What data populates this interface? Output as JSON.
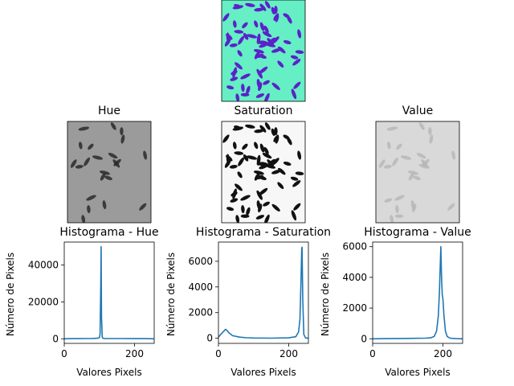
{
  "images": [
    {
      "id": "original",
      "title": ""
    },
    {
      "id": "hue",
      "title": "Hue"
    },
    {
      "id": "saturation",
      "title": "Saturation"
    },
    {
      "id": "value",
      "title": "Value"
    }
  ],
  "colors": {
    "line": "#1f77b4",
    "original_bg": "#66eec5",
    "original_grain": "#5a22c8",
    "hue_bg": "#9b9b9b",
    "saturation_bg": "#f7f7f7",
    "value_bg": "#d9d9d9"
  },
  "chart_data": [
    {
      "type": "line",
      "title": "Histograma - Hue",
      "xlabel": "Valores Pixels",
      "ylabel": "Número de Pixels",
      "xlim": [
        0,
        256
      ],
      "ylim": [
        -2500,
        52500
      ],
      "xticks": [
        0,
        200
      ],
      "yticks": [
        0,
        20000,
        40000
      ],
      "x": [
        0,
        20,
        40,
        60,
        80,
        95,
        100,
        102,
        104,
        105,
        106,
        108,
        110,
        115,
        130,
        160,
        200,
        230,
        255
      ],
      "values": [
        0,
        80,
        60,
        120,
        150,
        300,
        600,
        2500,
        30000,
        50000,
        12000,
        900,
        300,
        150,
        120,
        100,
        80,
        60,
        0
      ]
    },
    {
      "type": "line",
      "title": "Histograma - Saturation",
      "xlabel": "Valores Pixels",
      "ylabel": "Número de Pixels",
      "xlim": [
        0,
        256
      ],
      "ylim": [
        -400,
        7500
      ],
      "xticks": [
        0,
        200
      ],
      "yticks": [
        0,
        2000,
        4000,
        6000
      ],
      "x": [
        0,
        5,
        10,
        15,
        20,
        25,
        30,
        40,
        60,
        80,
        100,
        150,
        200,
        220,
        228,
        232,
        235,
        237,
        238,
        240,
        243,
        248,
        255
      ],
      "values": [
        80,
        250,
        400,
        550,
        700,
        600,
        420,
        200,
        90,
        40,
        20,
        10,
        30,
        120,
        500,
        1500,
        4500,
        7000,
        7100,
        3000,
        300,
        20,
        0
      ]
    },
    {
      "type": "line",
      "title": "Histograma - Value",
      "xlabel": "Valores Pixels",
      "ylabel": "Número de Pixels",
      "xlim": [
        0,
        256
      ],
      "ylim": [
        -300,
        6300
      ],
      "xticks": [
        0,
        200
      ],
      "yticks": [
        0,
        2000,
        4000,
        6000
      ],
      "x": [
        0,
        40,
        80,
        120,
        150,
        165,
        175,
        182,
        187,
        190,
        192,
        194,
        196,
        198,
        200,
        203,
        207,
        212,
        220,
        235,
        255
      ],
      "values": [
        0,
        10,
        20,
        30,
        40,
        60,
        150,
        500,
        1500,
        3000,
        4500,
        6000,
        4000,
        2900,
        2600,
        1500,
        500,
        150,
        40,
        10,
        0
      ]
    }
  ]
}
